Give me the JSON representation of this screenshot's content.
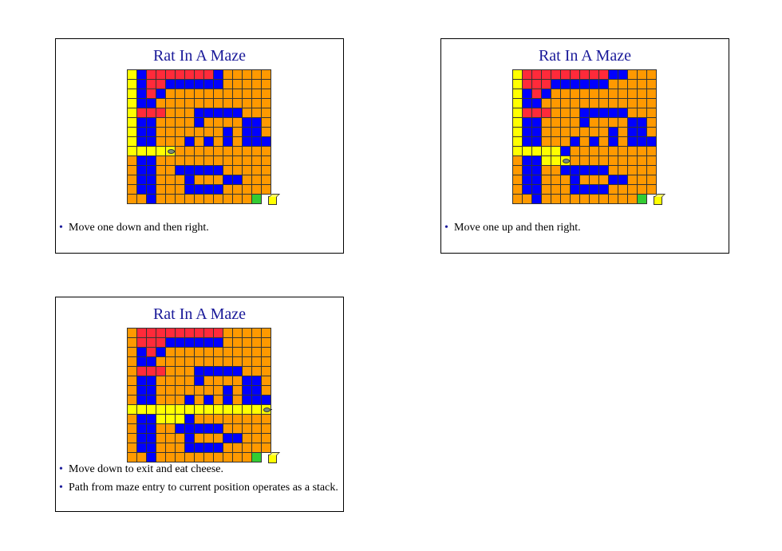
{
  "slides": [
    {
      "title": "Rat In A Maze",
      "maze": [
        "ybrrrrrrrbooooo",
        "ybrrbbbbbbooooo",
        "ybrbooooooooooo",
        "ybboooooooooooo",
        "yrrrooobbbbbooo",
        "ybbooooboooobbo",
        "ybbooooooobobbo",
        "ybbooobobobobbb",
        "yyyyRoooooooooo",
        "obbooooooooooo",
        "obboobbbbbooooo",
        "obbooobooobbooo",
        "obbooobbbbooooo",
        "oobooooooooooGC"
      ],
      "bullets": [
        "Move one down and then right."
      ]
    },
    {
      "title": "Rat In A Maze",
      "maze": [
        "yrrrrrrrrrbbooo",
        "yrrrbbbbbbooooo",
        "ybrbooooooooooo",
        "ybboooooooooooo",
        "yrrrooobbbbbooo",
        "ybbooooboooobbo",
        "ybbooooooobobbo",
        "ybbooobobobobbb",
        "yyyyybooooooooo",
        "obbyyRooooooooo",
        "obboobbbbbooooo",
        "obbooobooobbooo",
        "obbooobbbbooooo",
        "oobooooooooooGC"
      ],
      "bullets": [
        "Move one up and then right."
      ]
    },
    {
      "title": "Rat In A Maze",
      "maze": [
        "orrrrrrrrrooooo",
        "orrrbbbbbbooooo",
        "obrbooooooooooo",
        "obboooooooooooo",
        "orrrooobbbbbooo",
        "obbooooboooobbo",
        "obbooooooobobbo",
        "obbooobobobobbb",
        "yyyyyyyyyyyyyyR",
        "obbyyybooooooo",
        "obboobbbbbooooo",
        "obbooobooobbooo",
        "obbooobbbbooooo",
        "oobooooooooooGC"
      ],
      "bullets": [
        "Move down to exit and eat cheese.",
        "Path from maze entry to current position operates as a stack."
      ]
    }
  ]
}
